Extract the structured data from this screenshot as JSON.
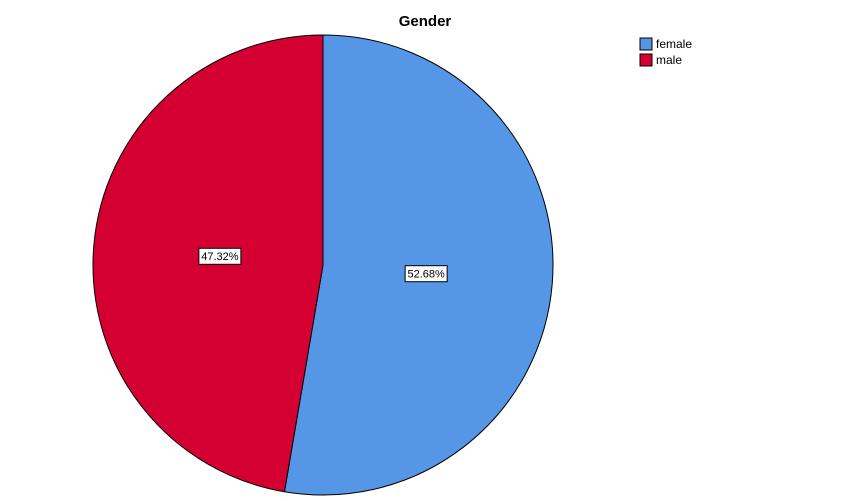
{
  "chart_data": {
    "type": "pie",
    "title": "Gender",
    "categories": [
      "female",
      "male"
    ],
    "values": [
      52.68,
      47.32
    ],
    "value_labels": [
      "52.68%",
      "47.32%"
    ],
    "colors": [
      "#5596e6",
      "#d50032"
    ],
    "legend": "top-right"
  }
}
